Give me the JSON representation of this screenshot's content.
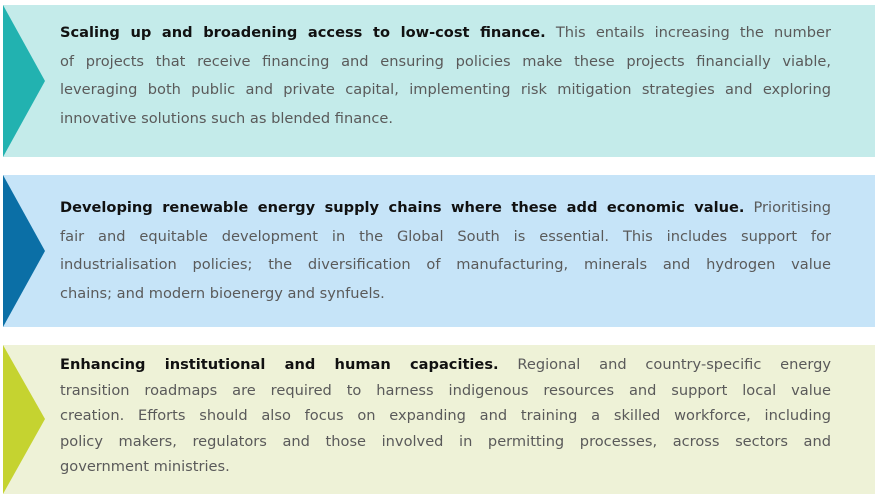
{
  "items": [
    {
      "heading": "Scaling up and broadening access to low-cost finance.",
      "lines": [
        " This entails increasing the number",
        "of projects that receive financing and ensuring policies make these projects financially viable,",
        "leveraging both public and private capital, implementing risk mitigation strategies and exploring",
        "innovative solutions such as blended finance."
      ],
      "bg_color": "#c4ebea",
      "arrow_color": "#22b2b0"
    },
    {
      "heading": "Developing renewable energy supply chains where these add economic value.",
      "lines": [
        " Prioritising",
        "fair and equitable development in the Global South is essential. This includes support for",
        "industrialisation policies; the diversification of manufacturing, minerals and hydrogen value",
        "chains; and modern bioenergy and synfuels."
      ],
      "bg_color": "#c6e4f8",
      "arrow_color": "#0b6fa6"
    },
    {
      "heading": "Enhancing institutional and human capacities.",
      "lines": [
        " Regional and country-specific energy",
        "transition roadmaps are required to harness indigenous resources and support local value",
        "creation. Efforts should also focus on expanding and training a skilled workforce, including",
        "policy makers, regulators and those involved in permitting processes, across sectors and",
        "government ministries."
      ],
      "bg_color": "#eef2d7",
      "arrow_color": "#c5d330"
    }
  ]
}
